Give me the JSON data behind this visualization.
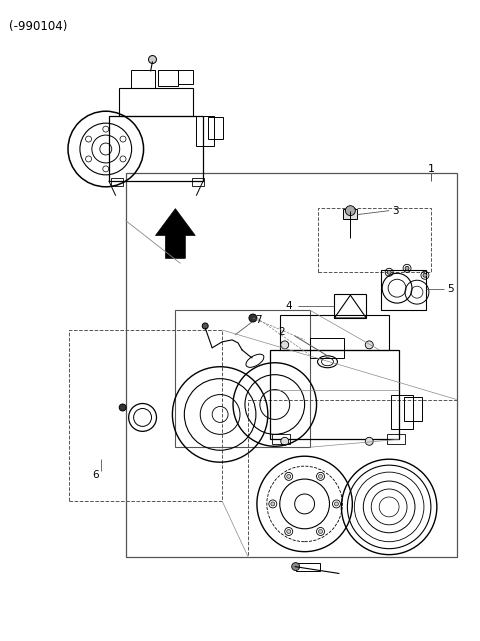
{
  "title": "(-990104)",
  "bg": "#ffffff",
  "lc": "#000000",
  "gray": "#888888"
}
